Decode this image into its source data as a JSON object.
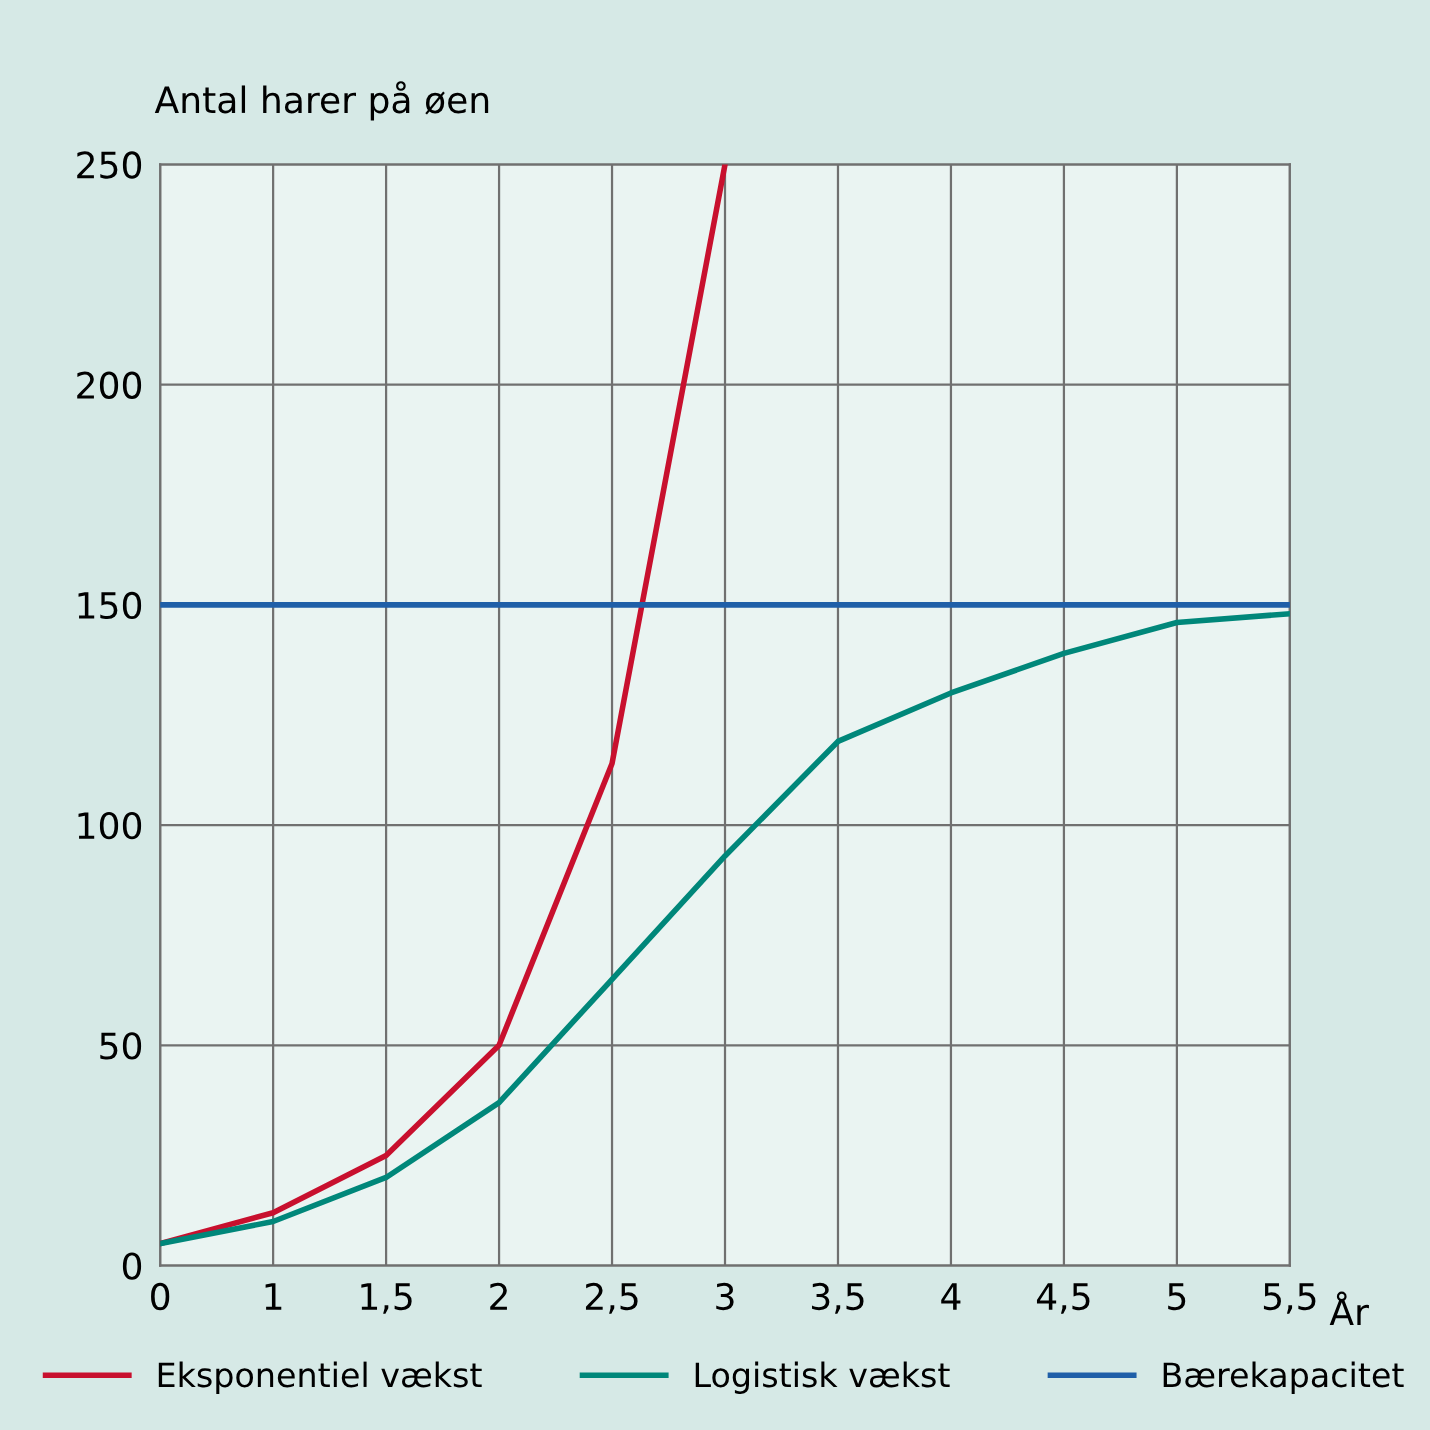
{
  "chart_data": {
    "type": "line",
    "ylabel": "Antal harer på øen",
    "xlabel": "År",
    "categories": [
      "0",
      "1",
      "1,5",
      "2",
      "2,5",
      "3",
      "3,5",
      "4",
      "4,5",
      "5",
      "5,5"
    ],
    "series": [
      {
        "name": "Eksponentiel vækst",
        "color": "#c8102e",
        "values": [
          5,
          12,
          25,
          50,
          114,
          250,
          null,
          null,
          null,
          null,
          null
        ]
      },
      {
        "name": "Logistisk vækst",
        "color": "#00877a",
        "values": [
          5,
          10,
          20,
          37,
          65,
          93,
          119,
          130,
          139,
          146,
          148
        ]
      },
      {
        "name": "Bærekapacitet",
        "color": "#1f5fa8",
        "values": [
          150,
          150,
          150,
          150,
          150,
          150,
          150,
          150,
          150,
          150,
          150
        ]
      }
    ],
    "ylim": [
      0,
      250
    ],
    "yticks": [
      0,
      50,
      100,
      150,
      200,
      250
    ],
    "grid": true,
    "legend": "bottom",
    "marker": "none",
    "line_style": "solid"
  }
}
